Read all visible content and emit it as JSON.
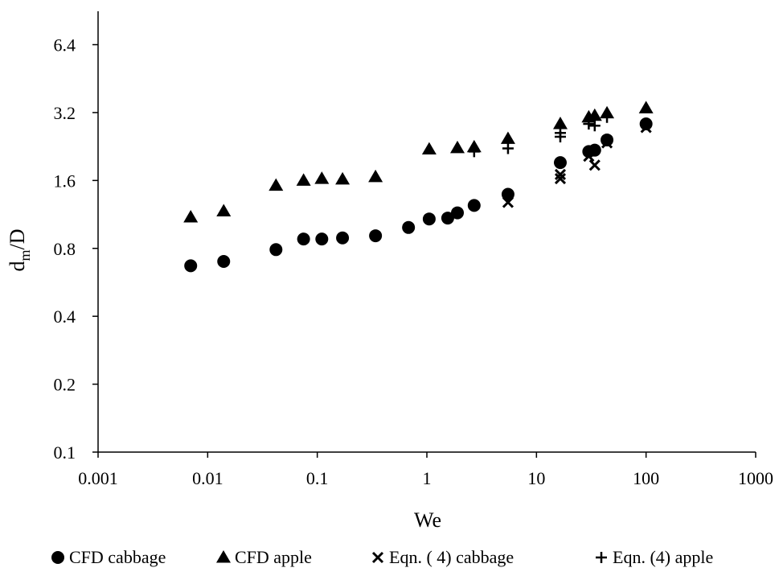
{
  "chart_data": {
    "type": "scatter",
    "title": "",
    "xlabel": "We",
    "ylabel_main": "d",
    "ylabel_sub": "m",
    "ylabel_tail": "/D",
    "x_scale": "log",
    "y_scale": "log2",
    "xlim": [
      0.001,
      1000
    ],
    "ylim": [
      0.1,
      9.0
    ],
    "x_ticks": [
      0.001,
      0.01,
      0.1,
      1,
      10,
      100,
      1000
    ],
    "x_tick_labels": [
      "0.001",
      "0.01",
      "0.1",
      "1",
      "10",
      "100",
      "1000"
    ],
    "y_ticks": [
      0.1,
      0.2,
      0.4,
      0.8,
      1.6,
      3.2,
      6.4
    ],
    "y_tick_labels": [
      "0.1",
      "0.2",
      "0.4",
      "0.8",
      "1.6",
      "3.2",
      "6.4"
    ],
    "grid": false,
    "legend_position": "bottom",
    "color": "#000000",
    "series": [
      {
        "name": "CFD cabbage",
        "marker": "circle",
        "points": [
          [
            0.007,
            0.67
          ],
          [
            0.014,
            0.7
          ],
          [
            0.042,
            0.79
          ],
          [
            0.075,
            0.88
          ],
          [
            0.11,
            0.88
          ],
          [
            0.17,
            0.89
          ],
          [
            0.34,
            0.91
          ],
          [
            0.68,
            0.99
          ],
          [
            1.05,
            1.08
          ],
          [
            1.55,
            1.09
          ],
          [
            1.9,
            1.15
          ],
          [
            2.7,
            1.24
          ],
          [
            5.5,
            1.39
          ],
          [
            16.5,
            1.92
          ],
          [
            30,
            2.15
          ],
          [
            34,
            2.18
          ],
          [
            44,
            2.42
          ],
          [
            100,
            2.85
          ]
        ]
      },
      {
        "name": "CFD apple",
        "marker": "triangle",
        "points": [
          [
            0.007,
            1.1
          ],
          [
            0.014,
            1.17
          ],
          [
            0.042,
            1.52
          ],
          [
            0.075,
            1.6
          ],
          [
            0.11,
            1.63
          ],
          [
            0.17,
            1.62
          ],
          [
            0.34,
            1.66
          ],
          [
            1.05,
            2.2
          ],
          [
            1.9,
            2.23
          ],
          [
            2.7,
            2.25
          ],
          [
            5.5,
            2.45
          ],
          [
            16.5,
            2.85
          ],
          [
            30,
            3.05
          ],
          [
            34,
            3.1
          ],
          [
            44,
            3.18
          ],
          [
            100,
            3.35
          ]
        ]
      },
      {
        "name": "Eqn. ( 4) cabbage",
        "marker": "x",
        "points": [
          [
            5.5,
            1.28
          ],
          [
            16.5,
            1.63
          ],
          [
            16.5,
            1.7
          ],
          [
            30,
            2.05
          ],
          [
            34,
            1.87
          ],
          [
            44,
            2.35
          ],
          [
            100,
            2.75
          ]
        ]
      },
      {
        "name": "Eqn. (4) apple",
        "marker": "plus",
        "points": [
          [
            2.7,
            2.15
          ],
          [
            5.5,
            2.22
          ],
          [
            16.5,
            2.5
          ],
          [
            16.5,
            2.6
          ],
          [
            30,
            2.85
          ],
          [
            34,
            2.8
          ],
          [
            44,
            3.05
          ]
        ]
      }
    ]
  }
}
